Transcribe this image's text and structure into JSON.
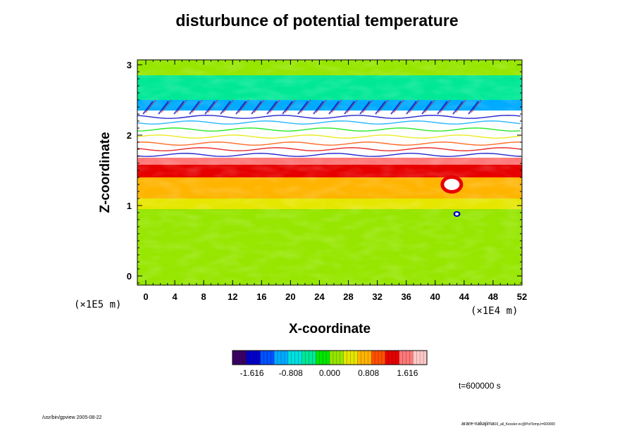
{
  "chart_data": {
    "type": "heatmap",
    "title": "disturbunce of potential temperature",
    "xlabel": "X-coordinate",
    "ylabel": "Z-coordinate",
    "x_unit": "(×1E4 m)",
    "y_unit": "(×1E5 m)",
    "xlim": [
      0,
      52
    ],
    "ylim": [
      0,
      3
    ],
    "x_ticks": [
      "0",
      "4",
      "8",
      "12",
      "16",
      "20",
      "24",
      "28",
      "32",
      "36",
      "40",
      "44",
      "48",
      "52"
    ],
    "y_ticks": [
      "0",
      "1",
      "2",
      "3"
    ],
    "colorbar": {
      "ticks": [
        "-1.616",
        "-0.808",
        "0.000",
        "0.808",
        "1.616"
      ],
      "range": [
        -2.02,
        2.02
      ],
      "colors": [
        "#3a0064",
        "#0000c8",
        "#0050ff",
        "#00aaff",
        "#00e0e0",
        "#00e896",
        "#00e600",
        "#96e600",
        "#e6e600",
        "#ffb400",
        "#ff5000",
        "#e60000",
        "#ff7878",
        "#ffc8c8"
      ]
    },
    "time_label": "t=600000 s",
    "footer_left": "/usr/bin/gpview 2005-08-22",
    "footer_right": "arare-nakajima",
    "footer_right_sub": "03_all_Kessler.nc@PotTemp,t=600000",
    "layers": [
      {
        "z": [
          0.0,
          0.95
        ],
        "value": 0.0
      },
      {
        "z": [
          0.95,
          1.1
        ],
        "value": 0.35
      },
      {
        "z": [
          1.1,
          1.4
        ],
        "value": 0.75
      },
      {
        "z": [
          1.4,
          1.58
        ],
        "value": 1.2
      },
      {
        "z": [
          1.58,
          1.68
        ],
        "value": 1.7
      },
      {
        "z": [
          1.68,
          2.35
        ],
        "value": 3.0
      },
      {
        "z": [
          2.35,
          2.5
        ],
        "value": -1.0
      },
      {
        "z": [
          2.5,
          2.85
        ],
        "value": -0.4
      },
      {
        "z": [
          2.85,
          3.05
        ],
        "value": 0.05
      }
    ]
  }
}
